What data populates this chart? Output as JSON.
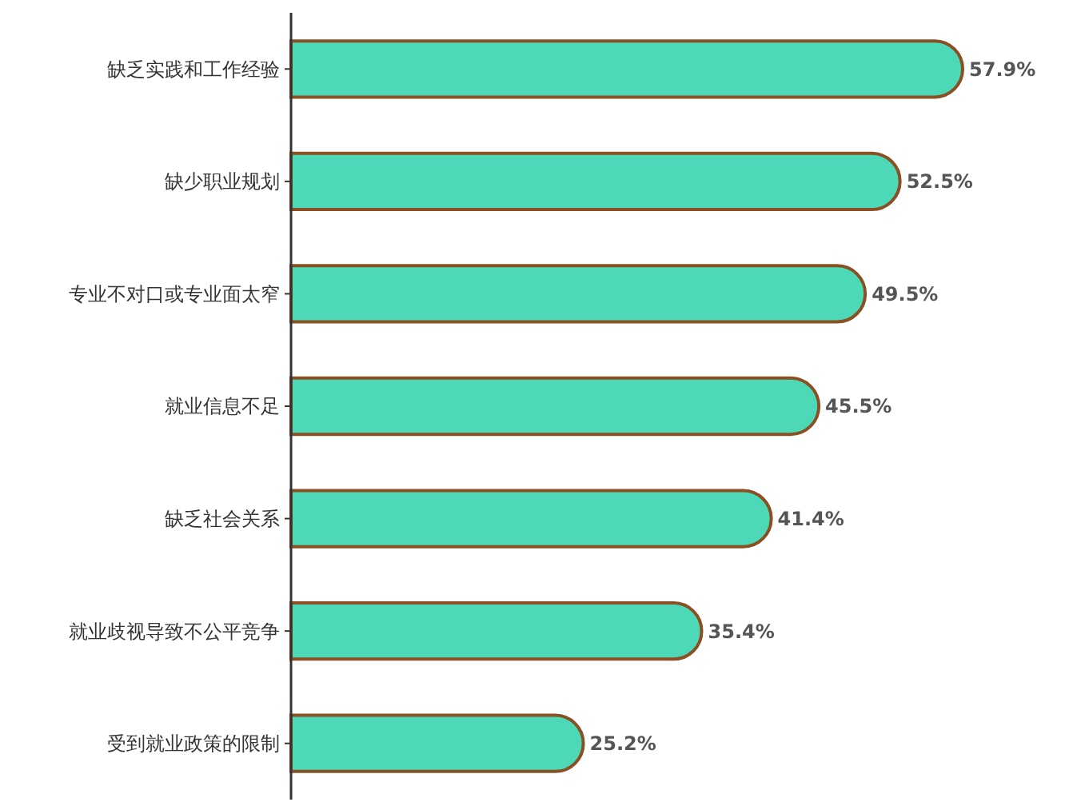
{
  "chart_data": {
    "type": "bar",
    "orientation": "horizontal",
    "categories": [
      "缺乏实践和工作经验",
      "缺少职业规划",
      "专业不对口或专业面太窄",
      "就业信息不足",
      "缺乏社会关系",
      "就业歧视导致不公平竞争",
      "受到就业政策的限制"
    ],
    "series": [
      {
        "color": "#4dd9b8",
        "values": [
          57.9,
          52.5,
          49.5,
          45.5,
          41.4,
          35.4,
          25.2
        ],
        "value_labels": [
          "57.9%",
          "52.5%",
          "49.5%",
          "45.5%",
          "41.4%",
          "35.4%",
          "25.2%"
        ]
      }
    ]
  }
}
